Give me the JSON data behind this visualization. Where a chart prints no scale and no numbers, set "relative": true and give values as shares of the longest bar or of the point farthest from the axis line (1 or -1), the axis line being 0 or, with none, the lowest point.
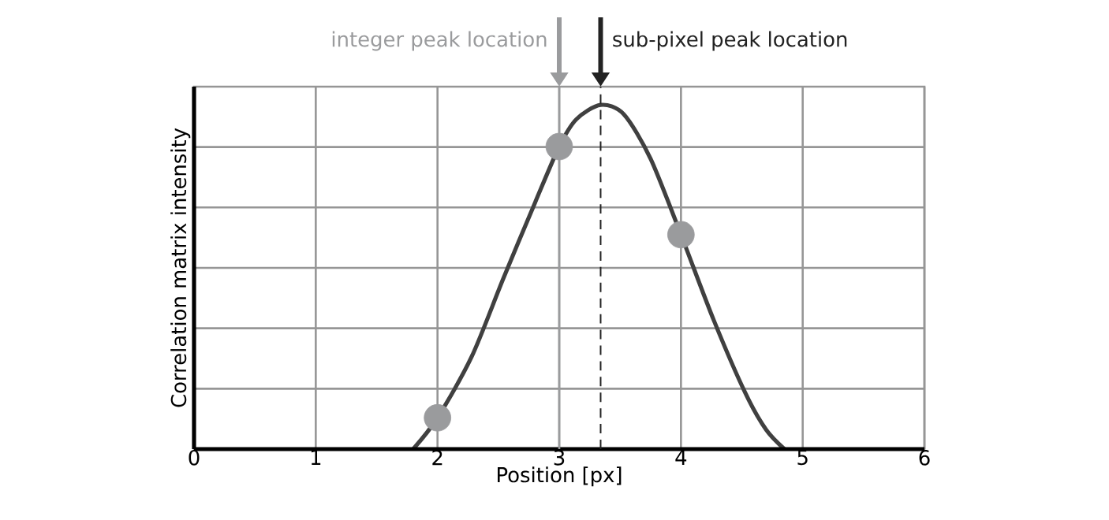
{
  "chart_data": {
    "type": "line",
    "xlabel": "Position [px]",
    "ylabel": "Correlation matrix intensity",
    "relative": true,
    "xlim": [
      0,
      6
    ],
    "xticks": [
      0,
      1,
      2,
      3,
      4,
      5,
      6
    ],
    "grid": true,
    "tick_labels": "x",
    "x": [
      1.8,
      2.0,
      2.28,
      2.54,
      2.8,
      3.0,
      3.14,
      3.34,
      3.53,
      3.75,
      4.0,
      4.27,
      4.53,
      4.7,
      4.85
    ],
    "series": [
      {
        "color": "#404040",
        "marker": "none",
        "values": [
          0,
          0.091,
          0.268,
          0.495,
          0.715,
          0.879,
          0.958,
          1,
          0.973,
          0.844,
          0.623,
          0.374,
          0.162,
          0.056,
          0
        ]
      },
      {
        "type": "scatter",
        "color": "#9a9b9d",
        "marker": "circle",
        "x": [
          2,
          3,
          4
        ],
        "values": [
          0.091,
          0.879,
          0.623
        ]
      }
    ],
    "ref_lines": [
      {
        "axis": "x",
        "value": 3,
        "color": "#9a9b9d",
        "line_style": "solid",
        "label": "integer peak location"
      },
      {
        "axis": "x",
        "value": 3.34,
        "color": "#222222",
        "line_style": "dashed",
        "label": "sub-pixel peak location"
      }
    ]
  }
}
